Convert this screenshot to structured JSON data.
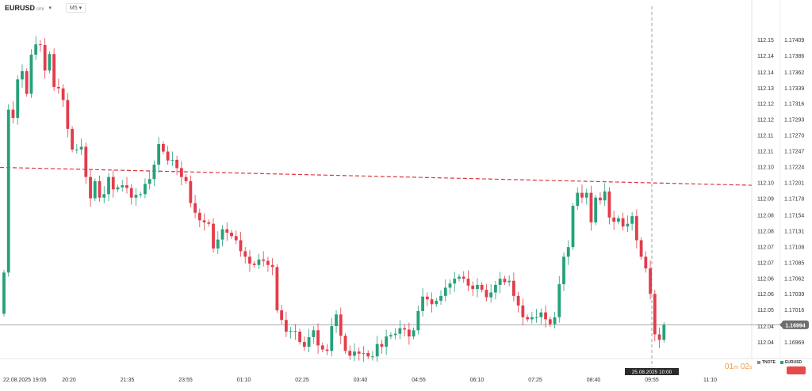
{
  "header": {
    "symbol": "EURUSD",
    "symbol_suffix": "cmi",
    "timeframe": "M5"
  },
  "crosshair_label": "25.08.2025 10:00",
  "countdown": {
    "minutes": "01",
    "m": "m",
    "seconds": "02",
    "s": "s"
  },
  "legend": [
    {
      "label": "TNOTE",
      "color": "#8c8c8c"
    },
    {
      "label": "EURUSD",
      "color": "#26a17b"
    }
  ],
  "colors": {
    "up": "#26a17b",
    "down": "#e23d4b",
    "resistance": "#d9363e",
    "price_line": "#9a9a9a"
  },
  "chart_data": {
    "type": "candlestick",
    "title": "EURUSD",
    "timeframe": "M5",
    "x_labels": [
      "22.08.2025 19:05",
      "20:20",
      "21:35",
      "23:55",
      "01:10",
      "02:25",
      "03:40",
      "04:55",
      "06:10",
      "07:25",
      "08:40",
      "09:55",
      "11:10"
    ],
    "y_ticks_left": [
      "112.15",
      "112.14",
      "112.14",
      "112.13",
      "112.12",
      "112.12",
      "112.11",
      "112.11",
      "112.10",
      "112.10",
      "112.09",
      "112.08",
      "112.08",
      "112.07",
      "112.07",
      "112.06",
      "112.06",
      "112.05",
      "112.04",
      "112.04"
    ],
    "y_ticks_right": [
      "1.17409",
      "1.17386",
      "1.17362",
      "1.17339",
      "1.17316",
      "1.17293",
      "1.17270",
      "1.17247",
      "1.17224",
      "1.17201",
      "1.17178",
      "1.17154",
      "1.17131",
      "1.17108",
      "1.17085",
      "1.17062",
      "1.17039",
      "1.17016",
      "1.16992",
      "1.16969"
    ],
    "ylim": [
      1.16946,
      1.17432
    ],
    "current_price": "1.16994",
    "resistance_line": {
      "start": 1.17223,
      "end": 1.17197,
      "style": "dashed"
    },
    "crosshair_time": "25.08.2025 10:00",
    "closes": [
      1.1707,
      1.17307,
      1.17295,
      1.17351,
      1.17363,
      1.1733,
      1.17387,
      1.17402,
      1.17401,
      1.17364,
      1.17388,
      1.1734,
      1.17338,
      1.17321,
      1.17279,
      1.17249,
      1.17249,
      1.17253,
      1.17209,
      1.17178,
      1.17203,
      1.17179,
      1.17184,
      1.17209,
      1.17191,
      1.17194,
      1.17197,
      1.17193,
      1.17179,
      1.17183,
      1.17184,
      1.17199,
      1.17206,
      1.17227,
      1.17257,
      1.17246,
      1.17233,
      1.17234,
      1.17222,
      1.17209,
      1.17203,
      1.17171,
      1.17157,
      1.17146,
      1.17143,
      1.17141,
      1.17105,
      1.17118,
      1.17133,
      1.17128,
      1.17123,
      1.17117,
      1.17101,
      1.17093,
      1.17083,
      1.17081,
      1.17089,
      1.17087,
      1.17081,
      1.17078,
      1.17015,
      1.17001,
      1.16984,
      1.16985,
      1.16984,
      1.16969,
      1.16962,
      1.16976,
      1.16986,
      1.16964,
      1.16958,
      1.16956,
      1.16992,
      1.17009,
      1.16978,
      1.16956,
      1.16949,
      1.16955,
      1.16952,
      1.16953,
      1.16948,
      1.16948,
      1.16966,
      1.16962,
      1.16977,
      1.16979,
      1.16981,
      1.16989,
      1.16987,
      1.16977,
      1.16986,
      1.17014,
      1.17035,
      1.17031,
      1.17024,
      1.17029,
      1.17036,
      1.17048,
      1.17054,
      1.17061,
      1.17064,
      1.17061,
      1.17051,
      1.17046,
      1.17052,
      1.17045,
      1.17034,
      1.17041,
      1.17052,
      1.17061,
      1.17056,
      1.17058,
      1.17036,
      1.17022,
      1.17005,
      1.17002,
      1.17005,
      1.17005,
      1.17012,
      1.17002,
      1.16995,
      1.17005,
      1.17053,
      1.17093,
      1.17107,
      1.17167,
      1.17186,
      1.17179,
      1.17186,
      1.17143,
      1.17179,
      1.17175,
      1.17188,
      1.1715,
      1.17144,
      1.17149,
      1.17137,
      1.17141,
      1.17152,
      1.17117,
      1.17093,
      1.17076,
      1.17039,
      1.1698,
      1.16972,
      1.16994
    ]
  }
}
